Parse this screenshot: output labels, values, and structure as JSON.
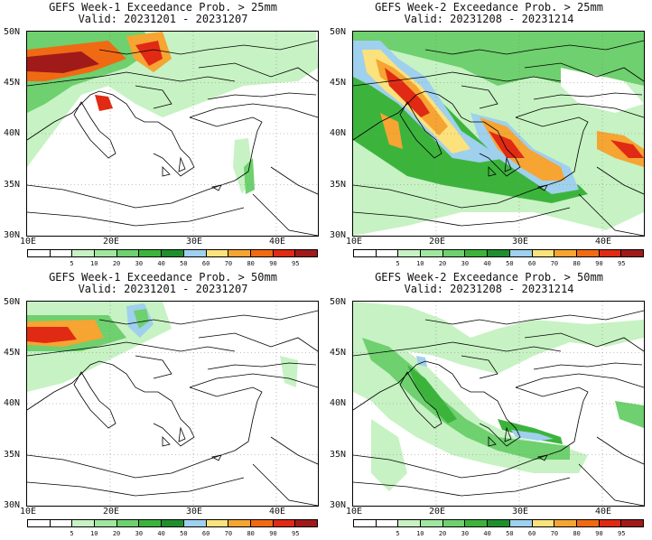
{
  "colorbar": {
    "labels": [
      "5",
      "10",
      "20",
      "30",
      "40",
      "50",
      "60",
      "70",
      "80",
      "90",
      "95"
    ],
    "colors": [
      "#ffffff",
      "#ffffff",
      "#c7f2c3",
      "#a0e6a0",
      "#6ed06e",
      "#3cb43c",
      "#1f8f2e",
      "#9fd0ee",
      "#fbe27c",
      "#f6a432",
      "#f06a14",
      "#e02a14",
      "#a01a1a"
    ]
  },
  "axes": {
    "y_labels": [
      "50N",
      "45N",
      "40N",
      "35N",
      "30N"
    ],
    "x_labels": [
      "10E",
      "20E",
      "30E",
      "40E"
    ]
  },
  "panels": [
    {
      "title": "GEFS Week-1 Exceedance Prob. > 25mm",
      "valid": "Valid: 20231201 - 20231207"
    },
    {
      "title": "GEFS Week-2 Exceedance Prob. > 25mm",
      "valid": "Valid: 20231208 - 20231214"
    },
    {
      "title": "GEFS Week-1 Exceedance Prob. > 50mm",
      "valid": "Valid: 20231201 - 20231207"
    },
    {
      "title": "GEFS Week-2 Exceedance Prob. > 50mm",
      "valid": "Valid: 20231208 - 20231214"
    }
  ]
}
